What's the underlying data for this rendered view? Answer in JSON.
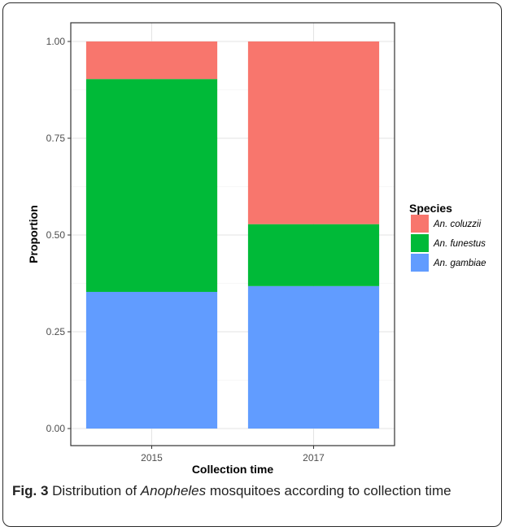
{
  "chart_data": {
    "type": "bar",
    "stacked": true,
    "categories": [
      "2015",
      "2017"
    ],
    "series": [
      {
        "name": "An. gambiae",
        "color": "#619CFF",
        "values": [
          0.353,
          0.368
        ]
      },
      {
        "name": "An. funestus",
        "color": "#00BA38",
        "values": [
          0.55,
          0.16
        ]
      },
      {
        "name": "An. coluzzii",
        "color": "#F8766D",
        "values": [
          0.097,
          0.472
        ]
      }
    ],
    "xlabel": "Collection time",
    "ylabel": "Proportion",
    "ylim": [
      0,
      1
    ],
    "yticks": [
      "0.00",
      "0.25",
      "0.50",
      "0.75",
      "1.00"
    ],
    "grid": true,
    "legend": {
      "title": "Species",
      "position": "right",
      "order": [
        "An. coluzzii",
        "An. funestus",
        "An. gambiae"
      ]
    }
  },
  "caption": {
    "label": "Fig. 3",
    "text_before": " Distribution of ",
    "italic": "Anopheles",
    "text_after": " mosquitoes according to collection time"
  }
}
